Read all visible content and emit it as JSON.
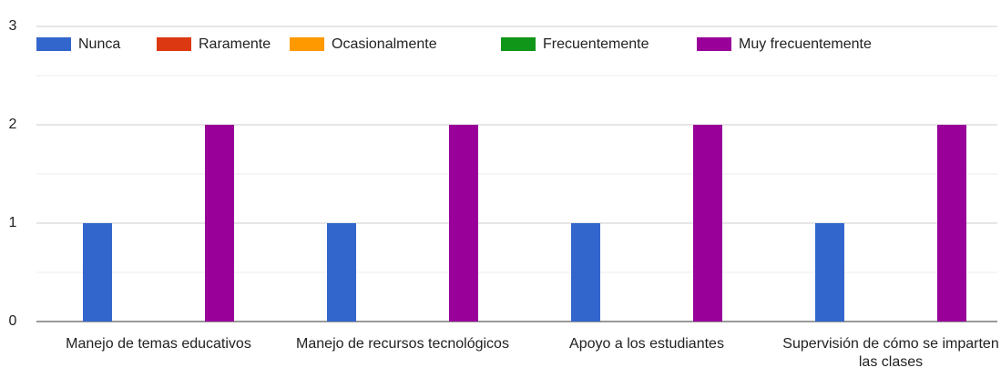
{
  "chart_data": {
    "type": "bar",
    "categories": [
      "Manejo de temas educativos",
      "Manejo de recursos tecnológicos",
      "Apoyo a los estudiantes",
      "Supervisión de cómo se imparten las clases"
    ],
    "series": [
      {
        "name": "Nunca",
        "color": "#3366cc",
        "values": [
          1,
          1,
          1,
          1
        ]
      },
      {
        "name": "Raramente",
        "color": "#dc3912",
        "values": [
          0,
          0,
          0,
          0
        ]
      },
      {
        "name": "Ocasionalmente",
        "color": "#ff9900",
        "values": [
          0,
          0,
          0,
          0
        ]
      },
      {
        "name": "Frecuentemente",
        "color": "#109618",
        "values": [
          0,
          0,
          0,
          0
        ]
      },
      {
        "name": "Muy frecuentemente",
        "color": "#990099",
        "values": [
          2,
          2,
          2,
          2
        ]
      }
    ],
    "ylim": [
      0,
      3
    ],
    "yticks": [
      0,
      1,
      2,
      3
    ],
    "grid": true,
    "legend": "top"
  }
}
